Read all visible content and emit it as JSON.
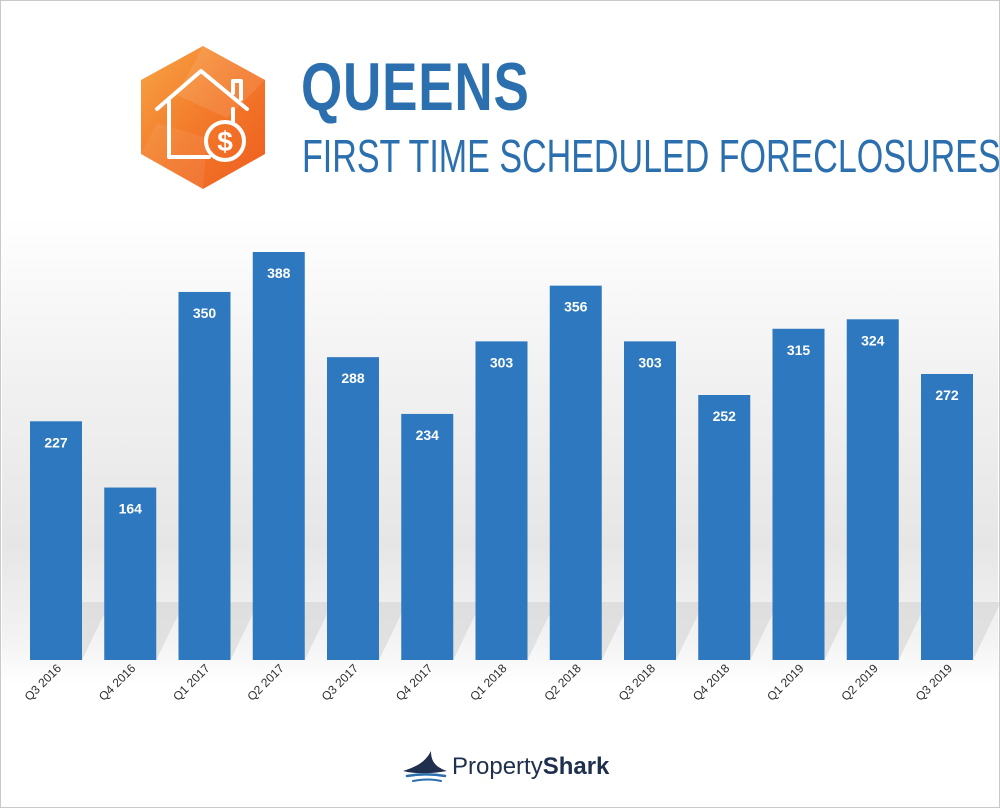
{
  "header": {
    "title": "QUEENS",
    "subtitle": "FIRST TIME SCHEDULED FORECLOSURES"
  },
  "brand": {
    "name_light": "Property",
    "name_bold": "Shark"
  },
  "colors": {
    "bar": "#2d78be",
    "title": "#2b6fae",
    "icon_orange": "#f26b21",
    "icon_orange_light": "#f89a3a"
  },
  "chart_data": {
    "type": "bar",
    "categories": [
      "Q3 2016",
      "Q4 2016",
      "Q1 2017",
      "Q2 2017",
      "Q3 2017",
      "Q4 2017",
      "Q1 2018",
      "Q2 2018",
      "Q3 2018",
      "Q4 2018",
      "Q1 2019",
      "Q2 2019",
      "Q3 2019"
    ],
    "values": [
      227,
      164,
      350,
      388,
      288,
      234,
      303,
      356,
      303,
      252,
      315,
      324,
      272
    ],
    "title": "QUEENS",
    "subtitle": "FIRST TIME SCHEDULED FORECLOSURES",
    "xlabel": "",
    "ylabel": "",
    "ylim": [
      0,
      388
    ],
    "grid": false,
    "data_labels": true
  }
}
